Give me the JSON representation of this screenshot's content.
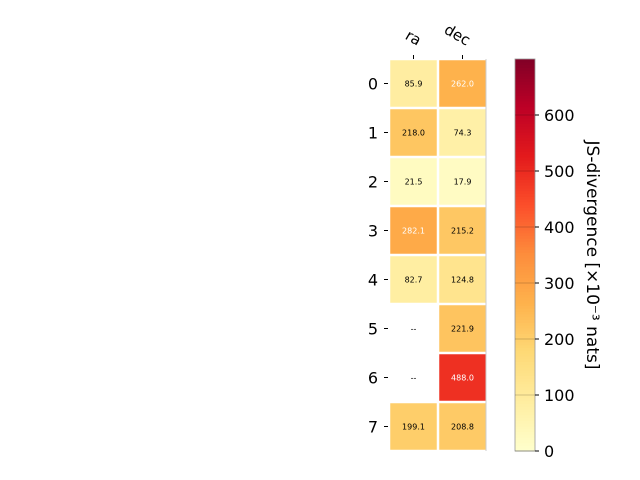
{
  "chart_data": {
    "type": "heatmap",
    "columns": [
      "ra",
      "dec"
    ],
    "rows": [
      "0",
      "1",
      "2",
      "3",
      "4",
      "5",
      "6",
      "7"
    ],
    "values": [
      [
        85.9,
        262.0
      ],
      [
        218.0,
        74.3
      ],
      [
        21.5,
        17.9
      ],
      [
        282.1,
        215.2
      ],
      [
        82.7,
        124.8
      ],
      [
        null,
        221.9
      ],
      [
        null,
        488.0
      ],
      [
        199.1,
        208.8
      ]
    ],
    "cell_labels": [
      [
        "85.9",
        "262.0"
      ],
      [
        "218.0",
        "74.3"
      ],
      [
        "21.5",
        "17.9"
      ],
      [
        "282.1",
        "215.2"
      ],
      [
        "82.7",
        "124.8"
      ],
      [
        "--",
        "221.9"
      ],
      [
        "--",
        "488.0"
      ],
      [
        "199.1",
        "208.8"
      ]
    ],
    "colorbar": {
      "label": "JS-divergence [×10⁻³ nats]",
      "min": 0,
      "max": 700,
      "ticks": [
        0,
        100,
        200,
        300,
        400,
        500,
        600
      ],
      "tick_labels": [
        "0",
        "100",
        "200",
        "300",
        "400",
        "500",
        "600"
      ],
      "colormap": "YlOrRd"
    },
    "missing_color": "#ffffff"
  }
}
